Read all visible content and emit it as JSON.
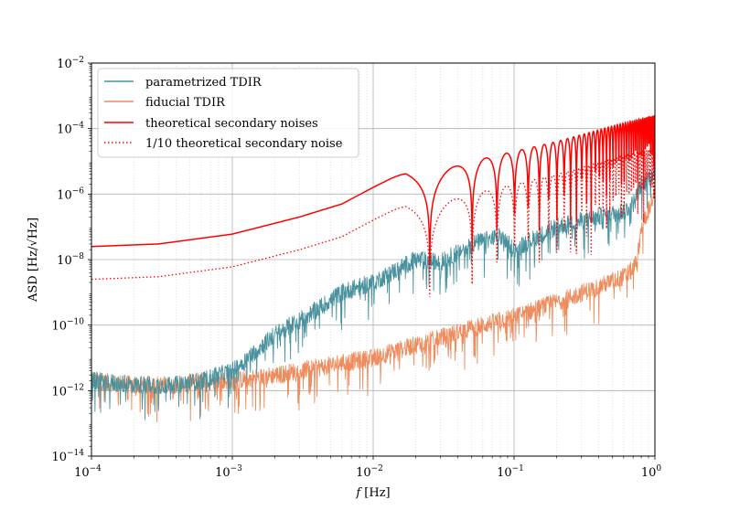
{
  "chart_data": {
    "type": "line",
    "xlabel_var": "f",
    "xlabel_unit": "[Hz]",
    "ylabel": "ASD [Hz/√Hz]",
    "xscale": "log",
    "yscale": "log",
    "xlim": [
      0.0001,
      1
    ],
    "ylim": [
      1e-14,
      0.01
    ],
    "grid": "major and minor",
    "legend_position": "top-left",
    "x_ticks": [
      {
        "base": "10",
        "exp": "−4"
      },
      {
        "base": "10",
        "exp": "−3"
      },
      {
        "base": "10",
        "exp": "−2"
      },
      {
        "base": "10",
        "exp": "−1"
      },
      {
        "base": "10",
        "exp": "0"
      }
    ],
    "y_ticks": [
      {
        "base": "10",
        "exp": "−14"
      },
      {
        "base": "10",
        "exp": "−12"
      },
      {
        "base": "10",
        "exp": "−10"
      },
      {
        "base": "10",
        "exp": "−8"
      },
      {
        "base": "10",
        "exp": "−6"
      },
      {
        "base": "10",
        "exp": "−4"
      },
      {
        "base": "10",
        "exp": "−2"
      }
    ],
    "series": [
      {
        "name": "parametrized TDIR",
        "color": "#4a929e",
        "style": "solid",
        "noisy": true,
        "x": [
          0.0001,
          0.0002,
          0.0004,
          0.0006,
          0.001,
          0.002,
          0.004,
          0.006,
          0.01,
          0.02,
          0.03,
          0.05,
          0.08,
          0.1,
          0.2,
          0.4,
          0.6,
          0.7,
          0.8,
          1.0
        ],
        "y": [
          2e-12,
          1.5e-12,
          1.5e-12,
          2e-12,
          4e-12,
          5e-11,
          3e-10,
          1e-09,
          2e-09,
          1e-08,
          8e-09,
          3e-08,
          5e-08,
          2e-08,
          1e-07,
          2e-07,
          3e-07,
          5e-07,
          2e-06,
          5e-06
        ]
      },
      {
        "name": "fiducial TDIR",
        "color": "#ee8c5e",
        "style": "solid",
        "noisy": true,
        "x": [
          0.0001,
          0.0002,
          0.0004,
          0.0006,
          0.001,
          0.002,
          0.004,
          0.01,
          0.02,
          0.05,
          0.1,
          0.2,
          0.4,
          0.6,
          0.7,
          0.75,
          0.8,
          1.0
        ],
        "y": [
          2e-12,
          1.5e-12,
          1.5e-12,
          2e-12,
          2e-12,
          3e-12,
          5e-12,
          1e-11,
          2.5e-11,
          8e-11,
          1.8e-10,
          5e-10,
          1.5e-09,
          3e-09,
          5e-09,
          1e-08,
          1e-07,
          1e-06
        ]
      },
      {
        "name": "theoretical secondary noises",
        "color": "#ff0000",
        "style": "solid",
        "noisy": false,
        "x": [
          0.0001,
          0.0003,
          0.001,
          0.003,
          0.006,
          0.01,
          0.017,
          0.025,
          0.05,
          0.1,
          0.2,
          0.5,
          1.0
        ],
        "y": [
          2.5e-08,
          3e-08,
          6e-08,
          2e-07,
          5e-07,
          1.6e-06,
          5e-06,
          4e-06,
          1e-05,
          2e-05,
          4e-05,
          0.00012,
          0.00025
        ],
        "notches_x": [
          0.0252,
          0.0504,
          0.0756,
          0.1008,
          0.126,
          0.1512,
          0.1764,
          0.2016,
          0.2268,
          0.252,
          0.2772,
          0.3024,
          0.3276,
          0.3528,
          0.378,
          0.4032,
          0.4284,
          0.4536,
          0.4788,
          0.504,
          0.5292,
          0.5544,
          0.5796,
          0.6048,
          0.63,
          0.6552,
          0.6804,
          0.7056,
          0.7308,
          0.756,
          0.7812,
          0.8064,
          0.8316,
          0.8568,
          0.882,
          0.9072,
          0.9324,
          0.9576,
          0.9828
        ]
      },
      {
        "name": "1/10 theoretical secondary noise",
        "color": "#ff0000",
        "style": "dotted",
        "noisy": false,
        "scale_of": 2,
        "scale_factor": 0.1
      }
    ]
  }
}
